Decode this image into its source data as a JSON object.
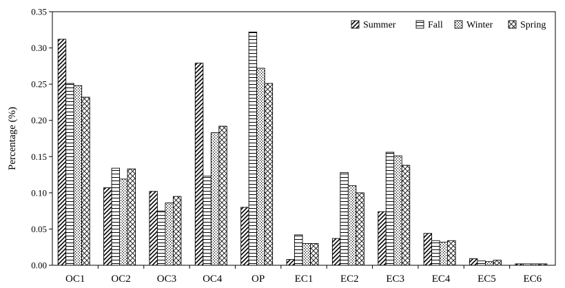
{
  "chart_data": {
    "type": "bar",
    "title": "",
    "xlabel": "",
    "ylabel": "Percentage (%)",
    "ylim": [
      0,
      0.35
    ],
    "yticks": [
      "0.00",
      "0.05",
      "0.10",
      "0.15",
      "0.20",
      "0.25",
      "0.30",
      "0.35"
    ],
    "grid": false,
    "legend_position": "top-right",
    "categories": [
      "OC1",
      "OC2",
      "OC3",
      "OC4",
      "OP",
      "EC1",
      "EC2",
      "EC3",
      "EC4",
      "EC5",
      "EC6"
    ],
    "series": [
      {
        "name": "Summer",
        "pattern": "diagonal-right",
        "values": [
          0.312,
          0.107,
          0.102,
          0.279,
          0.08,
          0.008,
          0.037,
          0.074,
          0.044,
          0.009,
          0.002
        ]
      },
      {
        "name": "Fall",
        "pattern": "horizontal-lines",
        "values": [
          0.251,
          0.134,
          0.075,
          0.123,
          0.322,
          0.042,
          0.128,
          0.156,
          0.034,
          0.006,
          0.002
        ]
      },
      {
        "name": "Winter",
        "pattern": "dotted-vertical",
        "values": [
          0.248,
          0.119,
          0.086,
          0.183,
          0.272,
          0.03,
          0.11,
          0.151,
          0.032,
          0.005,
          0.002
        ]
      },
      {
        "name": "Spring",
        "pattern": "diagonal-cross",
        "values": [
          0.232,
          0.133,
          0.095,
          0.192,
          0.251,
          0.03,
          0.1,
          0.138,
          0.034,
          0.007,
          0.002
        ]
      }
    ]
  }
}
